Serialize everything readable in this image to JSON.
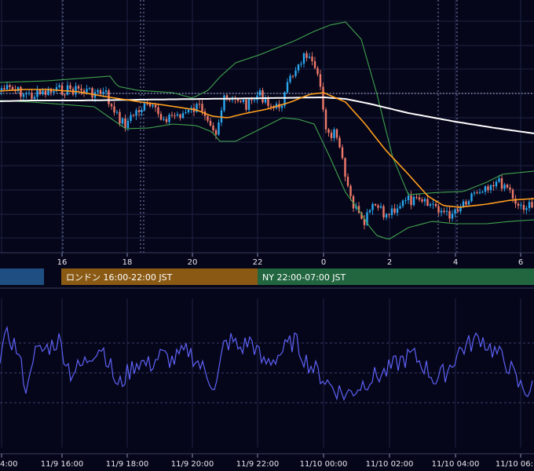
{
  "chart_data": [
    {
      "type": "candlestick",
      "title": "",
      "y_scale": "price",
      "x_ticks_top": [
        "16",
        "18",
        "20",
        "22",
        "0",
        "2",
        "4",
        "6"
      ],
      "grid": true,
      "overlays": [
        {
          "name": "",
          "kind": "moving-average-slow",
          "color": "#ffffff"
        },
        {
          "name": "",
          "kind": "moving-average-fast",
          "color": "#ff9f1c"
        },
        {
          "name": "",
          "kind": "bollinger-band",
          "color": "#3fa34d"
        }
      ],
      "candle_colors": {
        "up": "#29a8f0",
        "down": "#f07a6a"
      },
      "reference_line": {
        "style": "dotted",
        "color": "#cfd6ff"
      },
      "sessions": [
        {
          "label": "",
          "color": "#1f4f82"
        },
        {
          "label": "ロンドン 16:00-22:00 JST",
          "color": "#8a5a14"
        },
        {
          "label": "NY 22:00-07:00 JST",
          "color": "#226640"
        }
      ]
    },
    {
      "type": "line",
      "title": "",
      "series": [
        {
          "name": "",
          "color": "#5d61f5"
        }
      ],
      "ylim": [
        0,
        100
      ],
      "levels": [
        30,
        50,
        70
      ],
      "x_ticks_bottom": [
        "4:00",
        "11/9 16:00",
        "11/9 18:00",
        "11/9 20:00",
        "11/9 22:00",
        "11/10 00:00",
        "11/10 02:00",
        "11/10 04:00",
        "11/10 06:"
      ],
      "grid": true
    }
  ]
}
